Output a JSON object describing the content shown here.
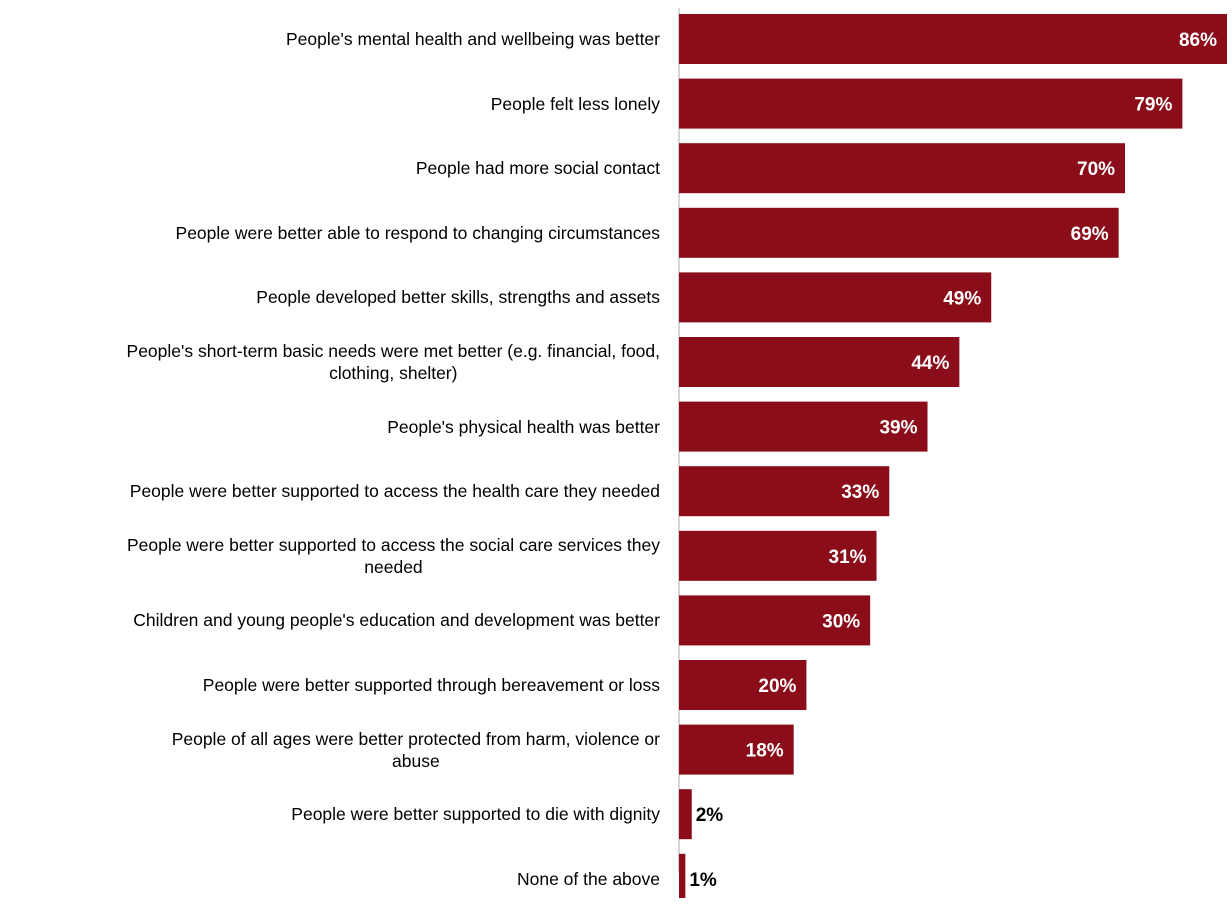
{
  "colors": {
    "bar": "#8b0d1a",
    "axis": "#c8c8c8",
    "label_inside": "#ffffff",
    "label_outside": "#000000"
  },
  "chart_data": {
    "type": "bar",
    "orientation": "horizontal",
    "title": "",
    "xlabel": "",
    "ylabel": "",
    "xlim": [
      0,
      86
    ],
    "grid": false,
    "legend": "none",
    "unit": "%",
    "categories": [
      "People's mental health and wellbeing was better",
      "People felt less lonely",
      "People had more social contact",
      "People were better able to respond to changing circumstances",
      "People developed better skills, strengths and assets",
      "People's short-term basic needs were met better (e.g. financial, food, clothing, shelter)",
      "People's physical health was better",
      "People were better supported to access the health care they needed",
      "People were better supported to access the social care services they needed",
      "Children and young people's education and development was better",
      "People were better supported through bereavement or loss",
      "People of all ages were better protected from harm, violence or abuse",
      "People were better supported to die with dignity",
      "None of the above"
    ],
    "values": [
      86,
      79,
      70,
      69,
      49,
      44,
      39,
      33,
      31,
      30,
      20,
      18,
      2,
      1
    ],
    "value_labels": [
      "86%",
      "79%",
      "70%",
      "69%",
      "49%",
      "44%",
      "39%",
      "33%",
      "31%",
      "30%",
      "20%",
      "18%",
      "2%",
      "1%"
    ]
  }
}
